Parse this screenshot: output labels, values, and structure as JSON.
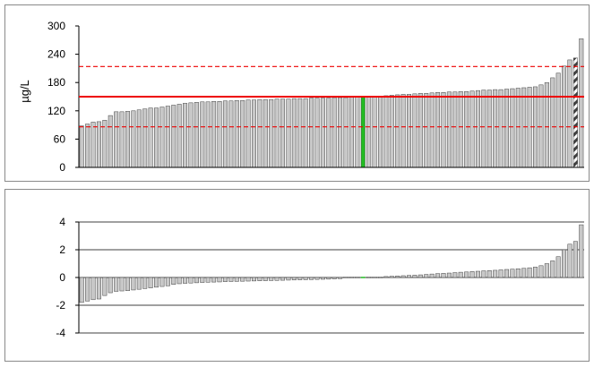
{
  "chart_data": [
    {
      "type": "bar",
      "ylabel": "µg/L",
      "ylim": [
        0,
        300
      ],
      "yticks": [
        "0",
        "60",
        "120",
        "180",
        "240",
        "300"
      ],
      "grid": false,
      "reference_lines": {
        "assigned": 150,
        "upper_limit": 214,
        "lower_limit": 86
      },
      "colors": {
        "bar": "#c8c8c8",
        "bar_edge": "#404040",
        "highlight": "#22bb22",
        "reference": "#ee0000",
        "outlier_hatch": "#404040"
      },
      "highlight_index": 49,
      "outlier_index": 86,
      "values": [
        88,
        92,
        96,
        97,
        100,
        110,
        118,
        118,
        119,
        120,
        122,
        124,
        126,
        126,
        128,
        130,
        132,
        134,
        136,
        137,
        138,
        139,
        139,
        140,
        140,
        141,
        141,
        142,
        142,
        143,
        143,
        144,
        144,
        144,
        145,
        145,
        145,
        146,
        146,
        146,
        147,
        147,
        147,
        147,
        148,
        148,
        148,
        149,
        149,
        150,
        150,
        151,
        151,
        152,
        153,
        154,
        155,
        155,
        156,
        157,
        157,
        158,
        159,
        159,
        160,
        160,
        161,
        161,
        162,
        163,
        164,
        164,
        165,
        165,
        166,
        167,
        168,
        169,
        170,
        171,
        175,
        180,
        190,
        200,
        215,
        228,
        232,
        273
      ]
    },
    {
      "type": "bar",
      "ylim": [
        -4,
        4
      ],
      "yticks": [
        "-4",
        "-2",
        "0",
        "2",
        "4"
      ],
      "grid": true,
      "colors": {
        "bar": "#c8c8c8",
        "bar_edge": "#404040",
        "highlight": "#22bb22",
        "gridline": "#000000"
      },
      "highlight_index": 49,
      "values": [
        -1.8,
        -1.7,
        -1.6,
        -1.55,
        -1.3,
        -1.1,
        -1.0,
        -0.97,
        -0.95,
        -0.9,
        -0.85,
        -0.8,
        -0.75,
        -0.7,
        -0.65,
        -0.6,
        -0.5,
        -0.45,
        -0.42,
        -0.4,
        -0.38,
        -0.36,
        -0.34,
        -0.33,
        -0.32,
        -0.3,
        -0.29,
        -0.28,
        -0.27,
        -0.26,
        -0.25,
        -0.24,
        -0.23,
        -0.22,
        -0.21,
        -0.2,
        -0.19,
        -0.18,
        -0.17,
        -0.16,
        -0.15,
        -0.14,
        -0.13,
        -0.12,
        -0.1,
        -0.08,
        -0.06,
        -0.05,
        -0.03,
        0,
        0.02,
        0.03,
        0.05,
        0.07,
        0.09,
        0.11,
        0.13,
        0.15,
        0.17,
        0.19,
        0.22,
        0.25,
        0.28,
        0.3,
        0.32,
        0.35,
        0.38,
        0.4,
        0.43,
        0.45,
        0.48,
        0.5,
        0.52,
        0.55,
        0.58,
        0.6,
        0.63,
        0.66,
        0.7,
        0.75,
        0.85,
        1.0,
        1.2,
        1.5,
        2.0,
        2.4,
        2.6,
        3.8
      ]
    }
  ]
}
